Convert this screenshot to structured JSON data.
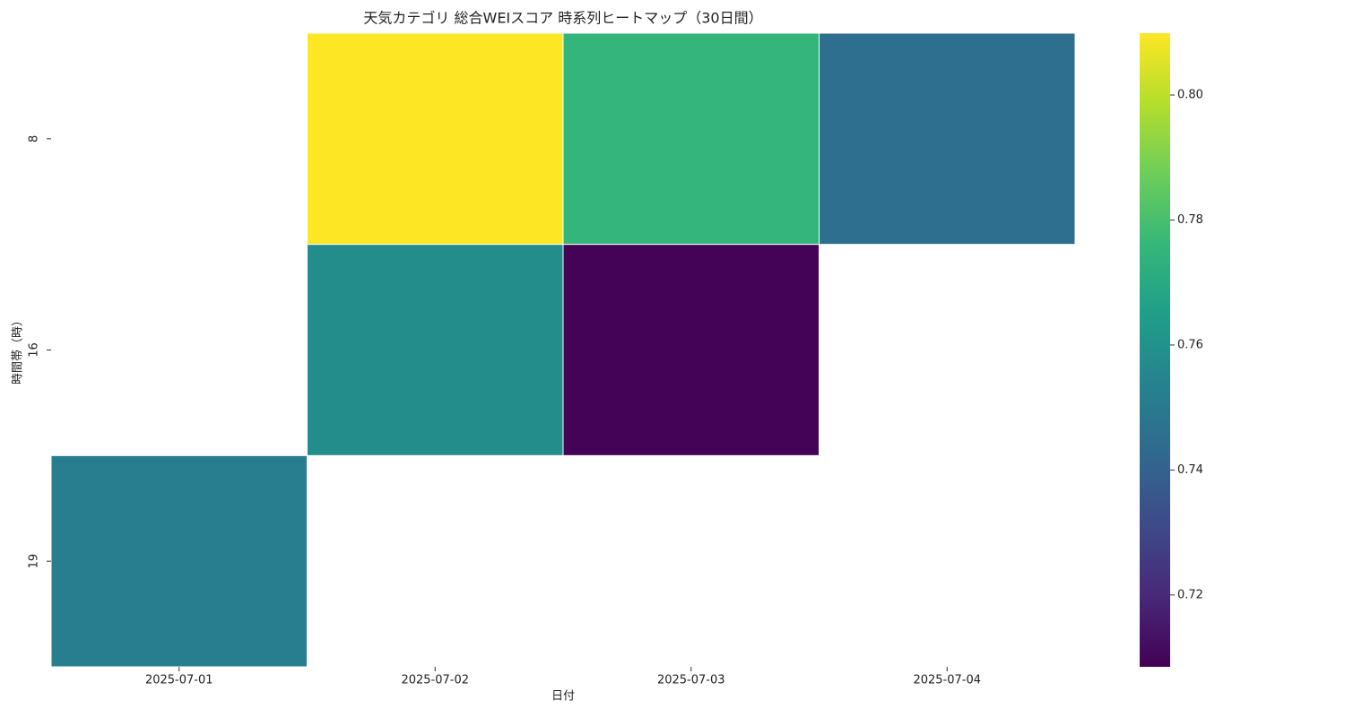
{
  "chart_data": {
    "type": "heatmap",
    "title": "天気カテゴリ 総合WEIスコア 時系列ヒートマップ（30日間）",
    "x_label": "日付",
    "y_label": "時間帯（時）",
    "x": [
      "2025-07-01",
      "2025-07-02",
      "2025-07-03",
      "2025-07-04"
    ],
    "y": [
      "8",
      "16",
      "19"
    ],
    "values": [
      [
        null,
        0.81,
        0.775,
        0.745
      ],
      [
        null,
        0.758,
        0.709,
        null
      ],
      [
        0.752,
        null,
        null,
        null
      ]
    ],
    "colormap": "viridis",
    "zlim": [
      0.7085,
      0.8099
    ],
    "zticks": [
      0.72,
      0.74,
      0.76,
      0.78,
      {
        "value": 0.8,
        "label": "0.80"
      }
    ]
  }
}
